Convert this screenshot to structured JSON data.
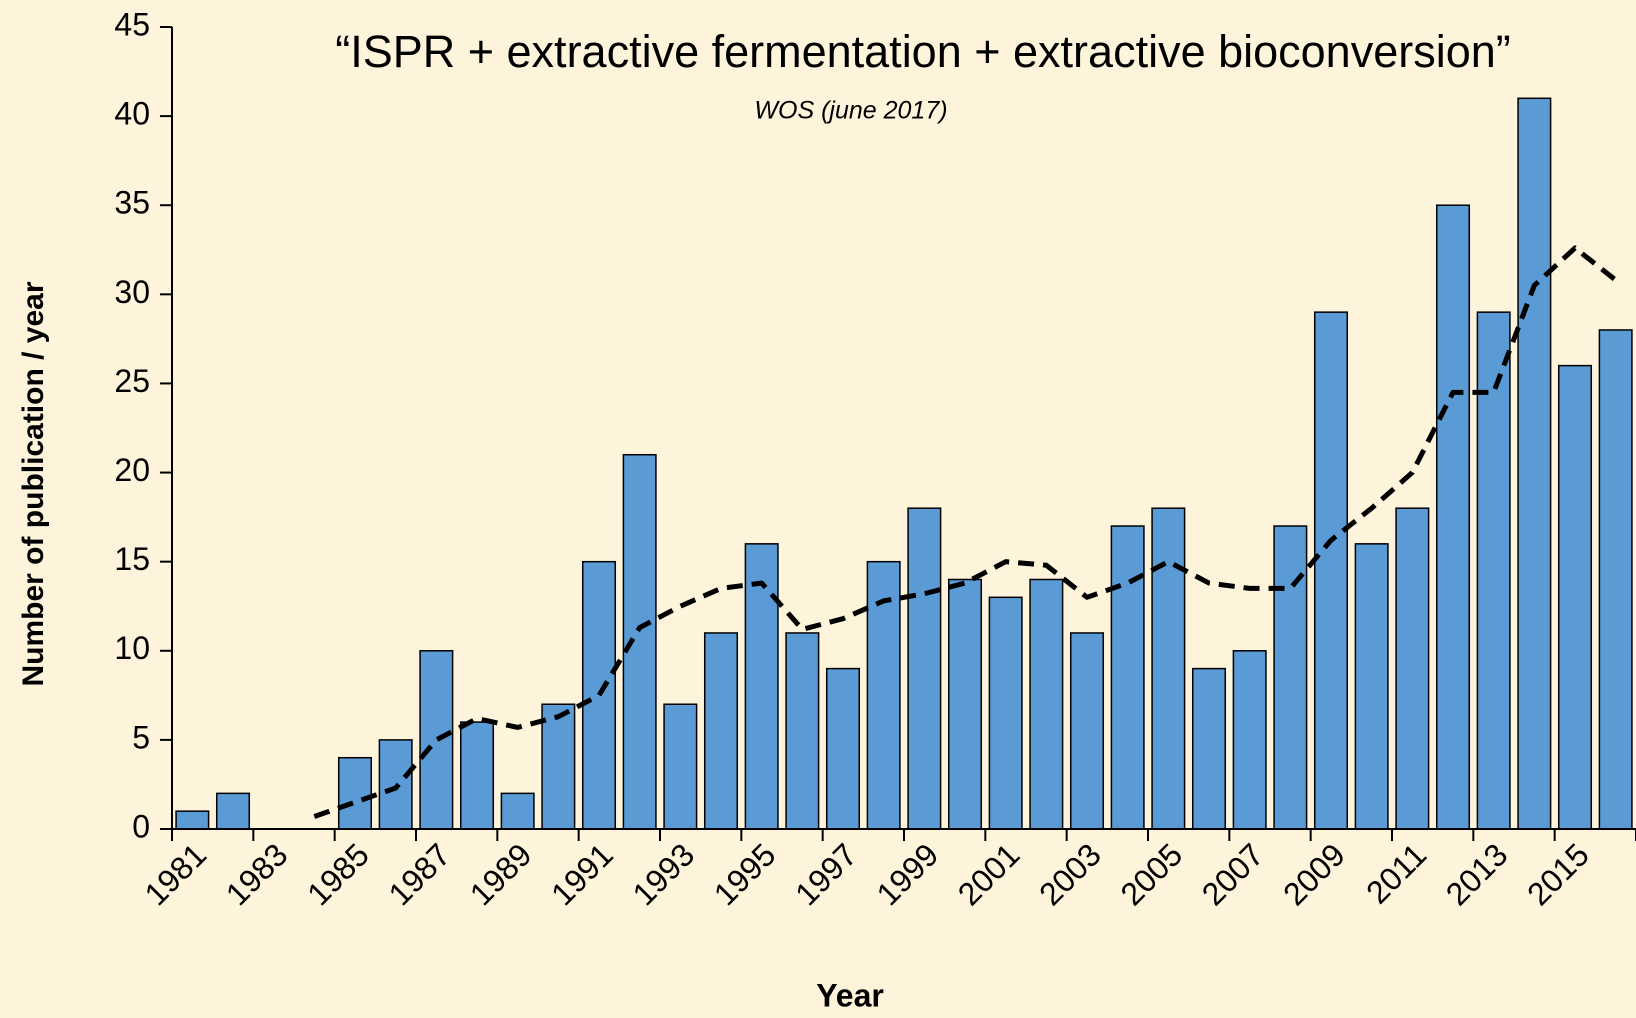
{
  "chart_data": {
    "type": "bar",
    "title": "“ISPR + extractive fermentation + extractive bioconversion”",
    "subtitle": "WOS (june 2017)",
    "x_label": "Year",
    "y_label": "Number of publication / year",
    "categories": [
      "1981",
      null,
      "1983",
      null,
      "1985",
      null,
      "1987",
      null,
      "1989",
      null,
      "1991",
      null,
      "1993",
      null,
      "1995",
      null,
      "1997",
      null,
      "1999",
      null,
      "2001",
      null,
      "2003",
      null,
      "2005",
      null,
      "2007",
      null,
      "2009",
      null,
      "2011",
      null,
      "2013",
      null,
      "2015",
      null
    ],
    "series": [
      {
        "type": "bar",
        "color": "#5b9bd5",
        "values": [
          1,
          2,
          0,
          0,
          4,
          5,
          10,
          6,
          2,
          7,
          15,
          21,
          7,
          11,
          16,
          11,
          9,
          15,
          18,
          14,
          13,
          14,
          11,
          17,
          18,
          9,
          10,
          17,
          29,
          16,
          18,
          35,
          29,
          41,
          26,
          28
        ]
      },
      {
        "type": "line",
        "color": "#000000",
        "dashed": true,
        "values": [
          null,
          null,
          null,
          0.7,
          1.5,
          2.3,
          5,
          6.2,
          5.7,
          6.3,
          7.5,
          11.3,
          12.5,
          13.5,
          13.8,
          11.2,
          11.8,
          12.8,
          13.2,
          13.8,
          15,
          14.8,
          13,
          13.8,
          15,
          13.8,
          13.5,
          13.5,
          16.2,
          18,
          20,
          24.5,
          24.5,
          30.5,
          32.6,
          30.8
        ]
      }
    ],
    "ylim": [
      0,
      45
    ],
    "yticks": [
      0,
      5,
      10,
      15,
      20,
      25,
      30,
      35,
      40,
      45
    ],
    "grid": false
  }
}
